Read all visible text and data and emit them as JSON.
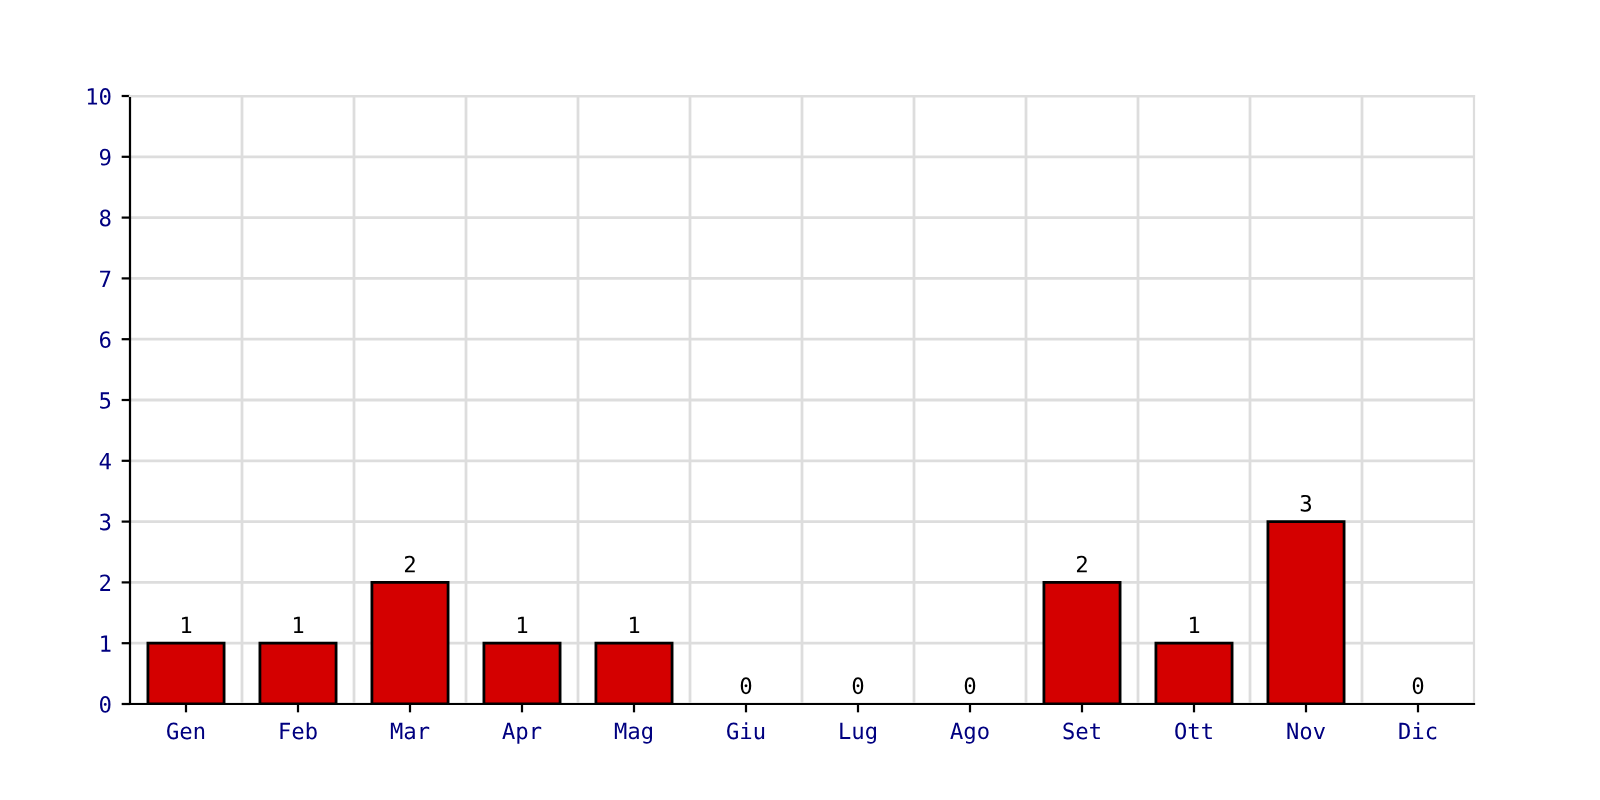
{
  "chart_data": {
    "type": "bar",
    "categories": [
      "Gen",
      "Feb",
      "Mar",
      "Apr",
      "Mag",
      "Giu",
      "Lug",
      "Ago",
      "Set",
      "Ott",
      "Nov",
      "Dic"
    ],
    "values": [
      1,
      1,
      2,
      1,
      1,
      0,
      0,
      0,
      2,
      1,
      3,
      0
    ],
    "color": "#d40000",
    "ylim": [
      0,
      10
    ],
    "yticks": [
      0,
      1,
      2,
      3,
      4,
      5,
      6,
      7,
      8,
      9,
      10
    ],
    "grid": true,
    "data_labels": true
  }
}
